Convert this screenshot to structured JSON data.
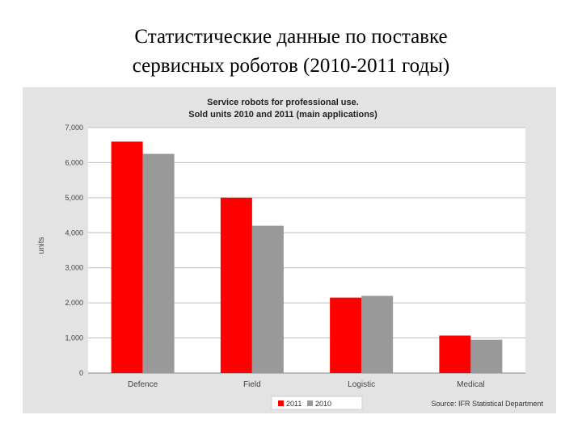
{
  "slide": {
    "title_line1": "Статистические данные по поставке",
    "title_line2": "сервисных роботов (2010-2011 годы)"
  },
  "chart_data": {
    "type": "bar",
    "title": "Service robots for professional use.",
    "subtitle": "Sold units 2010 and 2011 (main applications)",
    "categories": [
      "Defence",
      "Field",
      "Logistic",
      "Medical"
    ],
    "series": [
      {
        "name": "2011",
        "color": "#ff0000",
        "values": [
          6600,
          5000,
          2150,
          1070
        ]
      },
      {
        "name": "2010",
        "color": "#999999",
        "values": [
          6250,
          4200,
          2200,
          950
        ]
      }
    ],
    "ylabel": "units",
    "xlabel": "",
    "ylim": [
      0,
      7000
    ],
    "yticks": [
      0,
      1000,
      2000,
      3000,
      4000,
      5000,
      6000,
      7000
    ],
    "ytick_labels": [
      "0",
      "1,000",
      "2,000",
      "3,000",
      "4,000",
      "5,000",
      "6,000",
      "7,000"
    ],
    "grid": true,
    "legend_position": "bottom-center",
    "source": "Source: IFR Statistical Department"
  }
}
